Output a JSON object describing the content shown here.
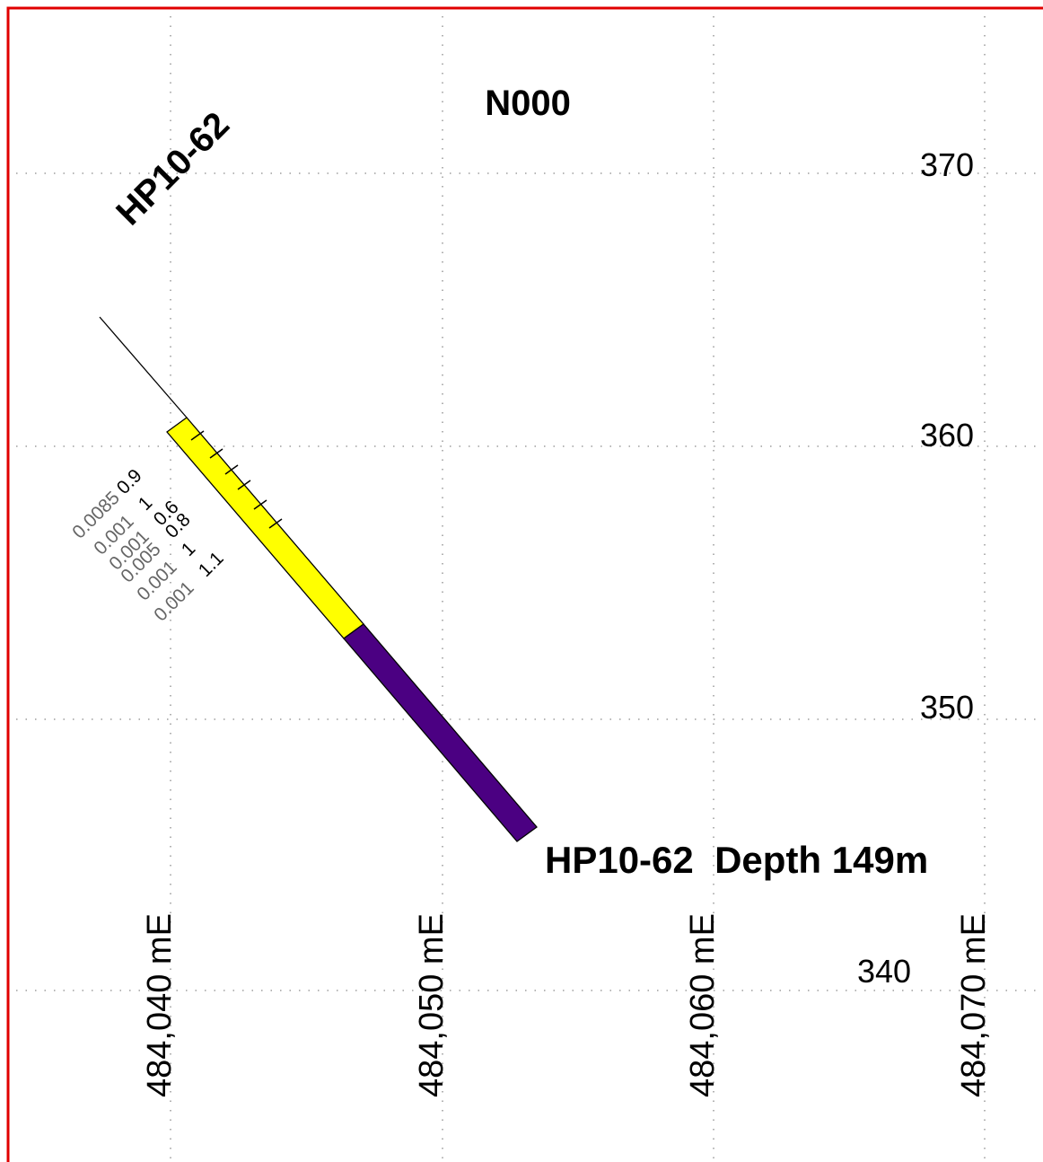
{
  "section": {
    "title": "N000",
    "hole_id": "HP10-62",
    "end_label": "HP10-62  Depth 149m",
    "frame_color": "#e00000"
  },
  "elevation_labels": [
    "370",
    "360",
    "350",
    "340"
  ],
  "easting_labels": [
    "484,040 mE",
    "484,050 mE",
    "484,060 mE",
    "484,070 mE"
  ],
  "assays": [
    {
      "au": "0.0085",
      "val": "0.9"
    },
    {
      "au": "0.001",
      "val": "1"
    },
    {
      "au": "0.001",
      "val": "0.6"
    },
    {
      "au": "0.005",
      "val": "0.8"
    },
    {
      "au": "0.001",
      "val": "1"
    },
    {
      "au": "0.001",
      "val": "1.1"
    }
  ],
  "lithology_colors": {
    "upper": "#ffff00",
    "lower": "#4b0082"
  },
  "icons": {
    "drill_trace": "drillhole-trace-icon"
  }
}
